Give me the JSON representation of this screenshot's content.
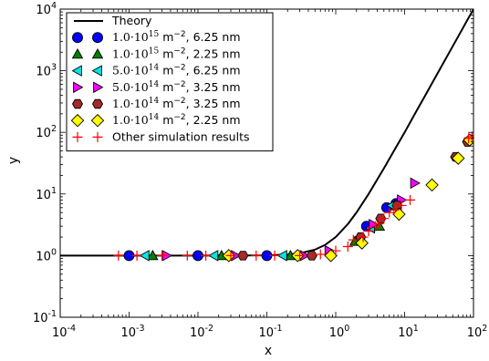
{
  "chart_data": {
    "type": "scatter",
    "title": "",
    "xlabel": "x",
    "ylabel": "y",
    "xscale": "log",
    "yscale": "log",
    "xlim": [
      0.0001,
      100
    ],
    "ylim": [
      0.1,
      10000
    ],
    "grid": false,
    "legend_position": "top-left",
    "x_ticks": [
      {
        "base": "10",
        "exp": "-4",
        "value": 0.0001
      },
      {
        "base": "10",
        "exp": "-3",
        "value": 0.001
      },
      {
        "base": "10",
        "exp": "-2",
        "value": 0.01
      },
      {
        "base": "10",
        "exp": "-1",
        "value": 0.1
      },
      {
        "base": "10",
        "exp": "0",
        "value": 1
      },
      {
        "base": "10",
        "exp": "1",
        "value": 10
      },
      {
        "base": "10",
        "exp": "2",
        "value": 100
      }
    ],
    "y_ticks": [
      {
        "base": "10",
        "exp": "-1",
        "value": 0.1
      },
      {
        "base": "10",
        "exp": "0",
        "value": 1
      },
      {
        "base": "10",
        "exp": "1",
        "value": 10
      },
      {
        "base": "10",
        "exp": "2",
        "value": 100
      },
      {
        "base": "10",
        "exp": "3",
        "value": 1000
      },
      {
        "base": "10",
        "exp": "4",
        "value": 10000
      }
    ],
    "theory": {
      "name": "Theory",
      "color": "#000000",
      "x": [
        0.0001,
        0.001,
        0.01,
        0.1,
        0.2,
        0.3,
        0.5,
        0.7,
        1,
        1.5,
        2,
        3,
        5,
        7,
        10,
        15,
        20,
        30,
        50,
        70,
        100
      ],
      "y": [
        1,
        1,
        1,
        1.01,
        1.04,
        1.09,
        1.25,
        1.49,
        2,
        3.25,
        5,
        10,
        26,
        50,
        100,
        226,
        400,
        901,
        2501,
        4901,
        10001
      ]
    },
    "series": [
      {
        "name_prefix": "1.0·10",
        "name_exp": "15",
        "name_unit": " m",
        "name_unit_exp": "−2",
        "name_suffix": ", 6.25 nm",
        "marker": "circle",
        "color": "#0000ff",
        "x": [
          0.001,
          0.01,
          0.1,
          2.8,
          5.5,
          7.5
        ],
        "y": [
          1,
          1,
          1,
          3.0,
          6.0,
          7.0
        ]
      },
      {
        "name_prefix": "1.0·10",
        "name_exp": "15",
        "name_unit": " m",
        "name_unit_exp": "−2",
        "name_suffix": ", 2.25 nm",
        "marker": "triangle-up",
        "color": "#008000",
        "x": [
          0.0022,
          0.022,
          0.22,
          1.9,
          4.3,
          7.2
        ],
        "y": [
          1,
          1,
          1,
          1.7,
          3.0,
          6.5
        ]
      },
      {
        "name_prefix": "5.0·10",
        "name_exp": "14",
        "name_unit": " m",
        "name_unit_exp": "−2",
        "name_suffix": ", 6.25 nm",
        "marker": "triangle-left",
        "color": "#00e5e5",
        "x": [
          0.0017,
          0.017,
          0.17,
          3.2,
          6.5
        ],
        "y": [
          1,
          1,
          1,
          2.8,
          6.5
        ]
      },
      {
        "name_prefix": "5.0·10",
        "name_exp": "14",
        "name_unit": " m",
        "name_unit_exp": "−2",
        "name_suffix": ", 3.25 nm",
        "marker": "triangle-right",
        "color": "#ff00ff",
        "x": [
          0.0035,
          0.035,
          0.35,
          0.8,
          3.5,
          9.0,
          14
        ],
        "y": [
          1,
          1,
          1,
          1.2,
          3.2,
          8.0,
          15
        ]
      },
      {
        "name_prefix": "1.0·10",
        "name_exp": "14",
        "name_unit": " m",
        "name_unit_exp": "−2",
        "name_suffix": ", 3.25 nm",
        "marker": "hexagon",
        "color": "#a52a2a",
        "x": [
          0.045,
          0.45,
          2.3,
          4.5,
          7.8,
          55,
          82
        ],
        "y": [
          1,
          1,
          2.0,
          4.0,
          6.5,
          40,
          70
        ]
      },
      {
        "name_prefix": "1.0·10",
        "name_exp": "14",
        "name_unit": " m",
        "name_unit_exp": "−2",
        "name_suffix": ", 2.25 nm",
        "marker": "diamond",
        "color": "#ffff00",
        "x": [
          0.028,
          0.28,
          0.85,
          2.4,
          8.3,
          25,
          60,
          88
        ],
        "y": [
          1,
          1,
          1,
          1.6,
          4.7,
          14,
          38,
          75
        ]
      },
      {
        "name": "Other simulation results",
        "marker": "plus",
        "color": "#ff0000",
        "x": [
          0.0007,
          0.0013,
          0.003,
          0.007,
          0.013,
          0.03,
          0.07,
          0.13,
          0.3,
          0.6,
          1.0,
          1.5,
          1.8,
          2.5,
          3.0,
          3.8,
          4.2,
          5.0,
          6.0,
          7.0,
          9.0,
          12,
          85,
          95
        ],
        "y": [
          1,
          1,
          1,
          1,
          1,
          1,
          1,
          1,
          1,
          1.05,
          1.2,
          1.4,
          1.8,
          2.0,
          2.5,
          3.0,
          3.3,
          4.0,
          5.0,
          5.5,
          6.5,
          8.0,
          80,
          85
        ]
      }
    ]
  }
}
